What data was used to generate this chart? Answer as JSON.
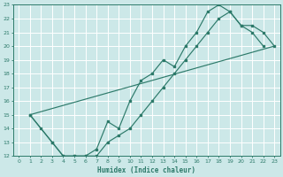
{
  "bg_color": "#cce8e8",
  "grid_color": "#e0f0f0",
  "line_color": "#2d7a6a",
  "xlabel": "Humidex (Indice chaleur)",
  "xlim": [
    -0.5,
    23.5
  ],
  "ylim": [
    12,
    23
  ],
  "xticks": [
    0,
    1,
    2,
    3,
    4,
    5,
    6,
    7,
    8,
    9,
    10,
    11,
    12,
    13,
    14,
    15,
    16,
    17,
    18,
    19,
    20,
    21,
    22,
    23
  ],
  "yticks": [
    12,
    13,
    14,
    15,
    16,
    17,
    18,
    19,
    20,
    21,
    22,
    23
  ],
  "curve1_x": [
    1,
    2,
    3,
    4,
    5,
    6,
    7,
    8,
    9,
    10,
    11,
    12,
    13,
    14,
    15,
    16,
    17,
    18,
    19,
    20,
    21,
    22
  ],
  "curve1_y": [
    15,
    14,
    13,
    12,
    12,
    12,
    12.5,
    14.5,
    14,
    16,
    17.5,
    18,
    19,
    18.5,
    20,
    21,
    22.5,
    23,
    22.5,
    21.5,
    21,
    20
  ],
  "curve2_x": [
    1,
    3,
    4,
    5,
    6,
    7,
    8,
    9,
    10,
    11,
    12,
    13,
    14,
    15,
    16,
    17,
    18,
    19,
    20,
    21,
    22,
    23
  ],
  "curve2_y": [
    15,
    13,
    12,
    12,
    12,
    12,
    13,
    13.5,
    14,
    15,
    16,
    17,
    18,
    19,
    20,
    21,
    22,
    22.5,
    21.5,
    21.5,
    21,
    20
  ],
  "line_x": [
    1,
    23
  ],
  "line_y": [
    15,
    20
  ]
}
